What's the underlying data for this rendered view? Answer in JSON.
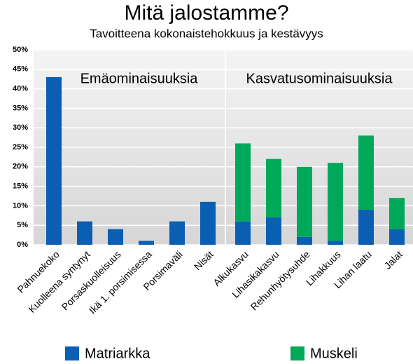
{
  "chart_data": {
    "type": "stacked_bar",
    "title": "Mitä jalostamme?",
    "subtitle": "Tavoitteena kokonaistehokkuus ja kestävyys",
    "group_labels": [
      "Emäominaisuuksia",
      "Kasvatusominaisuuksia"
    ],
    "categories": [
      "Pahnuekoko",
      "Kuolleena syntynyt",
      "Porsaskuolleisuus",
      "Ikä 1. porsimisessa",
      "Porsimaväli",
      "Nisät",
      "Alkukasvu",
      "Lihasikakasvu",
      "Rehunhyötysuhde",
      "Lihakkuus",
      "Lihan laatu",
      "Jalat"
    ],
    "series": [
      {
        "name": "Matriarkka",
        "color": "#0b5fb3",
        "values": [
          43,
          6,
          4,
          1,
          6,
          11,
          6,
          7,
          2,
          1,
          9,
          4
        ]
      },
      {
        "name": "Muskeli",
        "color": "#00a85a",
        "values": [
          null,
          null,
          null,
          null,
          null,
          null,
          20,
          15,
          18,
          20,
          19,
          8
        ]
      }
    ],
    "ylim": [
      0,
      50
    ],
    "yticks": [
      {
        "value": 0,
        "label": "0%"
      },
      {
        "value": 5,
        "label": "5%"
      },
      {
        "value": 10,
        "label": "10%"
      },
      {
        "value": 15,
        "label": "15%"
      },
      {
        "value": 20,
        "label": "20%"
      },
      {
        "value": 25,
        "label": "25%"
      },
      {
        "value": 30,
        "label": "30%"
      },
      {
        "value": 35,
        "label": "35%"
      },
      {
        "value": 40,
        "label": "40%"
      },
      {
        "value": 45,
        "label": "45%"
      },
      {
        "value": 50,
        "label": "50%"
      }
    ],
    "grid": true,
    "legend": "bottom"
  }
}
